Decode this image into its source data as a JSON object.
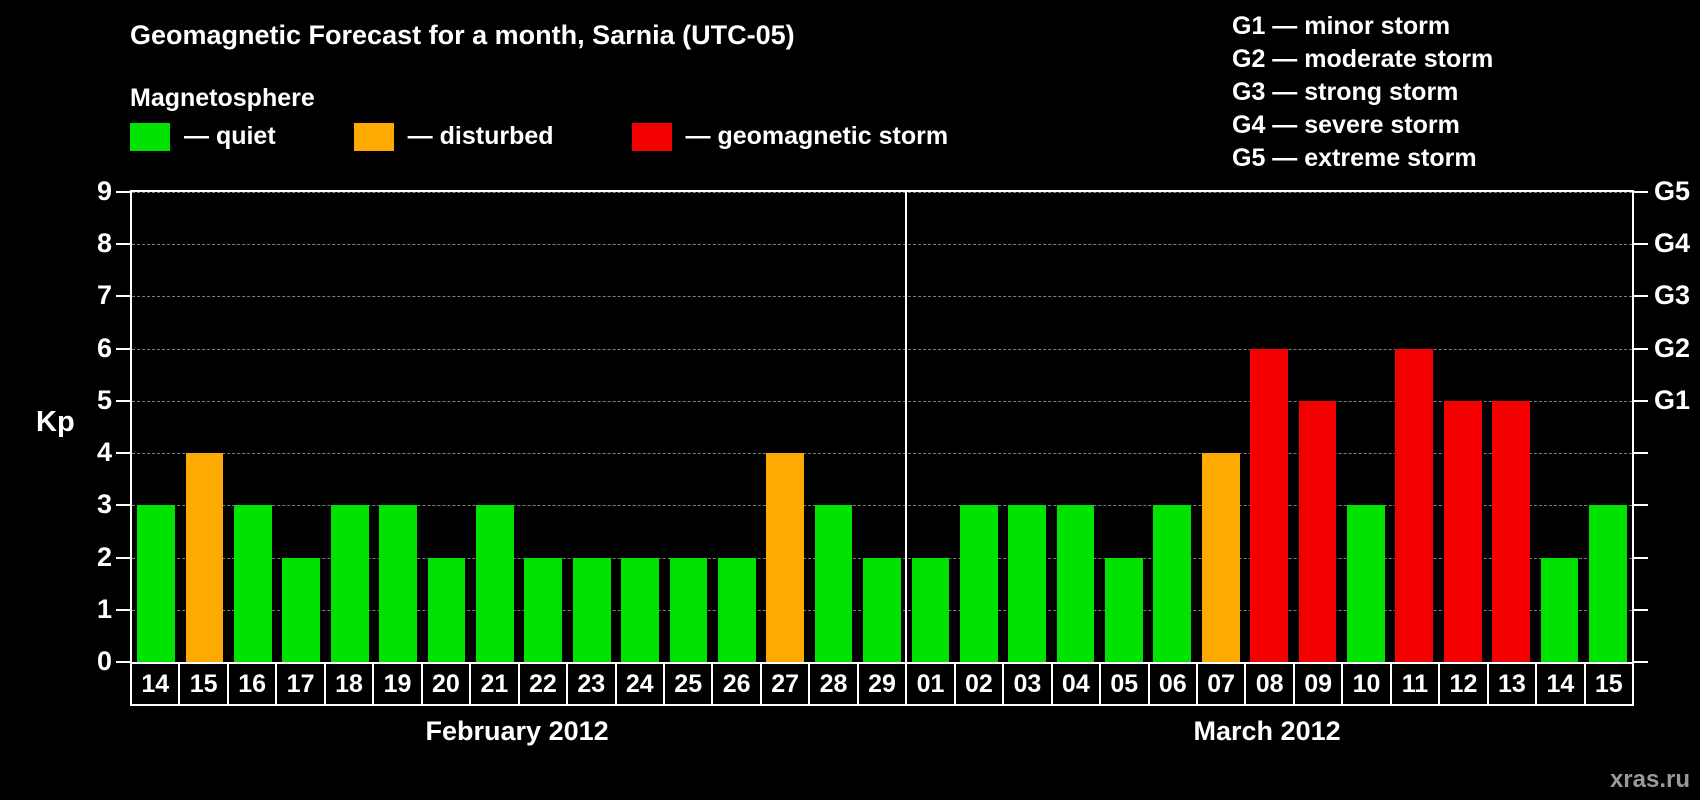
{
  "title": "Geomagnetic Forecast for a month, Sarnia (UTC-05)",
  "watermark": "xras.ru",
  "legend": {
    "heading": "Magnetosphere",
    "items": [
      {
        "status": "quiet",
        "label": "— quiet",
        "color": "#00e300"
      },
      {
        "status": "disturbed",
        "label": "— disturbed",
        "color": "#ffaa00"
      },
      {
        "status": "storm",
        "label": "— geomagnetic storm",
        "color": "#f40000"
      }
    ]
  },
  "storm_scale": [
    "G1 — minor storm",
    "G2 — moderate storm",
    "G3 — strong storm",
    "G4 — severe storm",
    "G5 — extreme storm"
  ],
  "chart_data": {
    "type": "bar",
    "title": "Geomagnetic Forecast for a month, Sarnia (UTC-05)",
    "ylabel": "Kp",
    "xlabel": "",
    "ylim": [
      0,
      9
    ],
    "yticks": [
      0,
      1,
      2,
      3,
      4,
      5,
      6,
      7,
      8,
      9
    ],
    "right_axis": [
      {
        "label": "G1",
        "value": 5
      },
      {
        "label": "G2",
        "value": 6
      },
      {
        "label": "G3",
        "value": 7
      },
      {
        "label": "G4",
        "value": 8
      },
      {
        "label": "G5",
        "value": 9
      }
    ],
    "grid": "horizontal-dashed",
    "legend_position": "top-left",
    "status_colors": {
      "quiet": "#00e300",
      "disturbed": "#ffaa00",
      "storm": "#f40000"
    },
    "groups": [
      {
        "label": "February 2012",
        "days": [
          "14",
          "15",
          "16",
          "17",
          "18",
          "19",
          "20",
          "21",
          "22",
          "23",
          "24",
          "25",
          "26",
          "27",
          "28",
          "29"
        ],
        "values": [
          3,
          4,
          3,
          2,
          3,
          3,
          2,
          3,
          2,
          2,
          2,
          2,
          2,
          4,
          3,
          2
        ],
        "status": [
          "quiet",
          "disturbed",
          "quiet",
          "quiet",
          "quiet",
          "quiet",
          "quiet",
          "quiet",
          "quiet",
          "quiet",
          "quiet",
          "quiet",
          "quiet",
          "disturbed",
          "quiet",
          "quiet"
        ]
      },
      {
        "label": "March 2012",
        "days": [
          "01",
          "02",
          "03",
          "04",
          "05",
          "06",
          "07",
          "08",
          "09",
          "10",
          "11",
          "12",
          "13",
          "14",
          "15"
        ],
        "values": [
          2,
          3,
          3,
          3,
          2,
          3,
          4,
          6,
          5,
          3,
          6,
          5,
          5,
          2,
          3
        ],
        "status": [
          "quiet",
          "quiet",
          "quiet",
          "quiet",
          "quiet",
          "quiet",
          "disturbed",
          "storm",
          "storm",
          "quiet",
          "storm",
          "storm",
          "storm",
          "quiet",
          "quiet"
        ]
      }
    ]
  }
}
